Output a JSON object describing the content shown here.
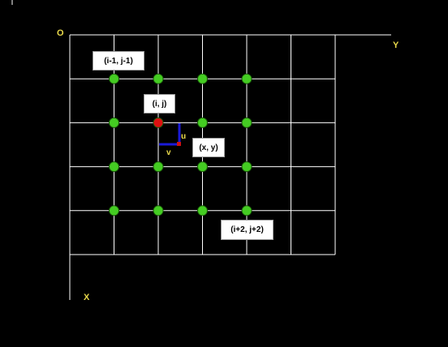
{
  "axes": {
    "origin": "O",
    "horizontal": "Y",
    "vertical": "X"
  },
  "grid": {
    "rows": 5,
    "cols": 6
  },
  "sample_points": {
    "rows": [
      1,
      2,
      3,
      4
    ],
    "cols": [
      1,
      2,
      3,
      4
    ],
    "color": "#44cc22",
    "highlight": {
      "row": 2,
      "col": 2,
      "color": "#dd1111"
    }
  },
  "callouts": {
    "top_left": "(i-1, j-1)",
    "center": "(i, j)",
    "target": "(x, y)",
    "bottom_right": "(i+2, j+2)"
  },
  "offsets": {
    "u": "u",
    "v": "v"
  },
  "colors": {
    "background": "#000000",
    "grid": "#ffffff",
    "axis_text": "#e8d84a",
    "offset_arrow": "#1a1ad8",
    "target_point": "#cc1111"
  }
}
